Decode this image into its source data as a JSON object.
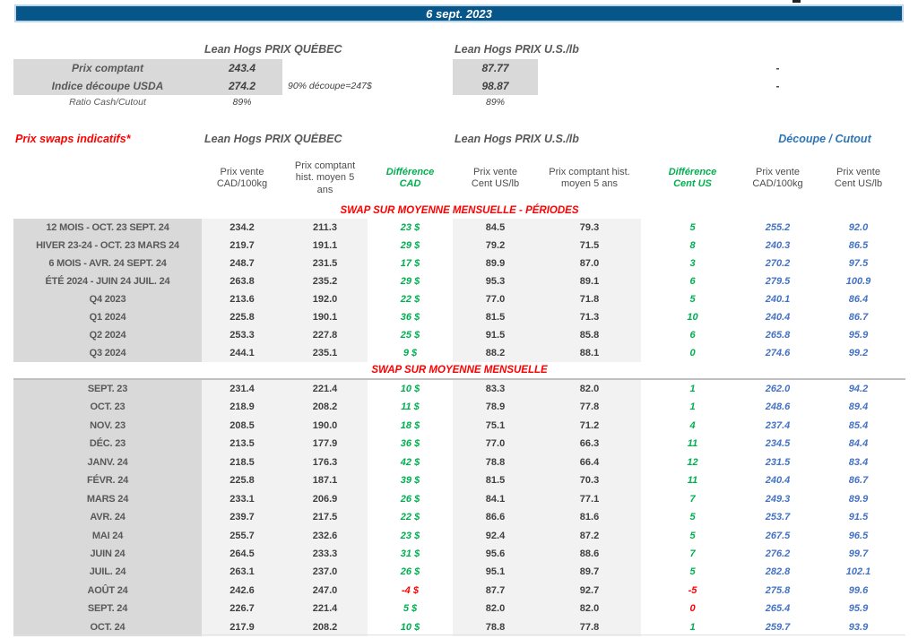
{
  "date_bar": {
    "text": "6 sept. 2023"
  },
  "colors": {
    "bar_blue": "#07568a",
    "positive_green": "#00b050",
    "negative_red": "#ff0000",
    "cutout_value_blue": "#4472c4",
    "cutout_header_blue": "#2e75b6",
    "section_title_red": "#ff0000",
    "label_bg_gray": "#d9d9d9",
    "value_bg_gray": "#f2f2f2"
  },
  "spot": {
    "quebec_header": "Lean Hogs PRIX QUÉBEC",
    "us_header": "Lean Hogs PRIX U.S./lb",
    "rows": [
      {
        "label": "Prix comptant",
        "quebec": "243.4",
        "note": "",
        "us": "87.77",
        "dash": "-"
      },
      {
        "label": "Indice découpe USDA",
        "quebec": "274.2",
        "note": "90% découpe=247$",
        "us": "98.87",
        "dash": "-"
      },
      {
        "label": "Ratio Cash/Cutout",
        "quebec": "89%",
        "note": "",
        "us": "89%",
        "dash": ""
      }
    ]
  },
  "swaps": {
    "title": "Prix swaps indicatifs*",
    "quebec_header": "Lean Hogs PRIX QUÉBEC",
    "us_header": "Lean Hogs PRIX U.S./lb",
    "cutout_header": "Découpe / Cutout",
    "column_headers": [
      "Prix vente\nCAD/100kg",
      "Prix comptant\nhist. moyen 5\nans",
      "Différence\nCAD",
      "Prix vente\nCent US/lb",
      "Prix comptant hist.\nmoyen 5 ans",
      "Différence\nCent US",
      "Prix vente\nCAD/100kg",
      "Prix vente\nCent US/lb"
    ],
    "sections": [
      {
        "title": "SWAP SUR MOYENNE MENSUELLE - PÉRIODES",
        "rows": [
          {
            "label": "12 MOIS - OCT. 23 SEPT. 24",
            "cad": "234.2",
            "cad_hist": "211.3",
            "diff_cad": "23 $",
            "diff_cad_color": "green",
            "us": "84.5",
            "us_hist": "79.3",
            "diff_us": "5",
            "diff_us_color": "green",
            "cutout_cad": "255.2",
            "cutout_us": "92.0"
          },
          {
            "label": "HIVER 23-24 -  OCT. 23 MARS 24",
            "cad": "219.7",
            "cad_hist": "191.1",
            "diff_cad": "29 $",
            "diff_cad_color": "green",
            "us": "79.2",
            "us_hist": "71.5",
            "diff_us": "8",
            "diff_us_color": "green",
            "cutout_cad": "240.3",
            "cutout_us": "86.5"
          },
          {
            "label": "6 MOIS -  AVR. 24 SEPT. 24",
            "cad": "248.7",
            "cad_hist": "231.5",
            "diff_cad": "17 $",
            "diff_cad_color": "green",
            "us": "89.9",
            "us_hist": "87.0",
            "diff_us": "3",
            "diff_us_color": "green",
            "cutout_cad": "270.2",
            "cutout_us": "97.5"
          },
          {
            "label": "ÉTÉ 2024 - JUIN 24 JUIL. 24",
            "cad": "263.8",
            "cad_hist": "235.2",
            "diff_cad": "29 $",
            "diff_cad_color": "green",
            "us": "95.3",
            "us_hist": "89.1",
            "diff_us": "6",
            "diff_us_color": "green",
            "cutout_cad": "279.5",
            "cutout_us": "100.9"
          },
          {
            "label": "Q4 2023",
            "cad": "213.6",
            "cad_hist": "192.0",
            "diff_cad": "22 $",
            "diff_cad_color": "green",
            "us": "77.0",
            "us_hist": "71.8",
            "diff_us": "5",
            "diff_us_color": "green",
            "cutout_cad": "240.1",
            "cutout_us": "86.4"
          },
          {
            "label": "Q1 2024",
            "cad": "225.8",
            "cad_hist": "190.1",
            "diff_cad": "36 $",
            "diff_cad_color": "green",
            "us": "81.5",
            "us_hist": "71.3",
            "diff_us": "10",
            "diff_us_color": "green",
            "cutout_cad": "240.4",
            "cutout_us": "86.7"
          },
          {
            "label": "Q2 2024",
            "cad": "253.3",
            "cad_hist": "227.8",
            "diff_cad": "25 $",
            "diff_cad_color": "green",
            "us": "91.5",
            "us_hist": "85.8",
            "diff_us": "6",
            "diff_us_color": "green",
            "cutout_cad": "265.8",
            "cutout_us": "95.9"
          },
          {
            "label": "Q3 2024",
            "cad": "244.1",
            "cad_hist": "235.1",
            "diff_cad": "9 $",
            "diff_cad_color": "green",
            "us": "88.2",
            "us_hist": "88.1",
            "diff_us": "0",
            "diff_us_color": "green",
            "cutout_cad": "274.6",
            "cutout_us": "99.2"
          }
        ]
      },
      {
        "title": "SWAP SUR MOYENNE MENSUELLE",
        "rows": [
          {
            "label": "SEPT. 23",
            "cad": "231.4",
            "cad_hist": "221.4",
            "diff_cad": "10 $",
            "diff_cad_color": "green",
            "us": "83.3",
            "us_hist": "82.0",
            "diff_us": "1",
            "diff_us_color": "green",
            "cutout_cad": "262.0",
            "cutout_us": "94.2"
          },
          {
            "label": "OCT. 23",
            "cad": "218.9",
            "cad_hist": "208.2",
            "diff_cad": "11 $",
            "diff_cad_color": "green",
            "us": "78.9",
            "us_hist": "77.8",
            "diff_us": "1",
            "diff_us_color": "green",
            "cutout_cad": "248.6",
            "cutout_us": "89.4"
          },
          {
            "label": "NOV. 23",
            "cad": "208.5",
            "cad_hist": "190.0",
            "diff_cad": "18 $",
            "diff_cad_color": "green",
            "us": "75.1",
            "us_hist": "71.2",
            "diff_us": "4",
            "diff_us_color": "green",
            "cutout_cad": "237.4",
            "cutout_us": "85.4"
          },
          {
            "label": "DÉC. 23",
            "cad": "213.5",
            "cad_hist": "177.9",
            "diff_cad": "36 $",
            "diff_cad_color": "green",
            "us": "77.0",
            "us_hist": "66.3",
            "diff_us": "11",
            "diff_us_color": "green",
            "cutout_cad": "234.5",
            "cutout_us": "84.4"
          },
          {
            "label": "JANV. 24",
            "cad": "218.5",
            "cad_hist": "176.3",
            "diff_cad": "42 $",
            "diff_cad_color": "green",
            "us": "78.8",
            "us_hist": "66.4",
            "diff_us": "12",
            "diff_us_color": "green",
            "cutout_cad": "231.5",
            "cutout_us": "83.4"
          },
          {
            "label": "FÉVR. 24",
            "cad": "225.8",
            "cad_hist": "187.1",
            "diff_cad": "39 $",
            "diff_cad_color": "green",
            "us": "81.5",
            "us_hist": "70.3",
            "diff_us": "11",
            "diff_us_color": "green",
            "cutout_cad": "240.4",
            "cutout_us": "86.7"
          },
          {
            "label": "MARS 24",
            "cad": "233.1",
            "cad_hist": "206.9",
            "diff_cad": "26 $",
            "diff_cad_color": "green",
            "us": "84.1",
            "us_hist": "77.1",
            "diff_us": "7",
            "diff_us_color": "green",
            "cutout_cad": "249.3",
            "cutout_us": "89.9"
          },
          {
            "label": "AVR. 24",
            "cad": "239.7",
            "cad_hist": "217.5",
            "diff_cad": "22 $",
            "diff_cad_color": "green",
            "us": "86.6",
            "us_hist": "81.6",
            "diff_us": "5",
            "diff_us_color": "green",
            "cutout_cad": "253.7",
            "cutout_us": "91.5"
          },
          {
            "label": "MAI 24",
            "cad": "255.7",
            "cad_hist": "232.6",
            "diff_cad": "23 $",
            "diff_cad_color": "green",
            "us": "92.4",
            "us_hist": "87.2",
            "diff_us": "5",
            "diff_us_color": "green",
            "cutout_cad": "267.5",
            "cutout_us": "96.5"
          },
          {
            "label": "JUIN 24",
            "cad": "264.5",
            "cad_hist": "233.3",
            "diff_cad": "31 $",
            "diff_cad_color": "green",
            "us": "95.6",
            "us_hist": "88.6",
            "diff_us": "7",
            "diff_us_color": "green",
            "cutout_cad": "276.2",
            "cutout_us": "99.7"
          },
          {
            "label": "JUIL. 24",
            "cad": "263.1",
            "cad_hist": "237.0",
            "diff_cad": "26 $",
            "diff_cad_color": "green",
            "us": "95.1",
            "us_hist": "89.7",
            "diff_us": "5",
            "diff_us_color": "green",
            "cutout_cad": "282.8",
            "cutout_us": "102.1"
          },
          {
            "label": "AOÛT 24",
            "cad": "242.6",
            "cad_hist": "247.0",
            "diff_cad": "-4 $",
            "diff_cad_color": "red",
            "us": "87.7",
            "us_hist": "92.7",
            "diff_us": "-5",
            "diff_us_color": "red",
            "cutout_cad": "275.8",
            "cutout_us": "99.6"
          },
          {
            "label": "SEPT. 24",
            "cad": "226.7",
            "cad_hist": "221.4",
            "diff_cad": "5 $",
            "diff_cad_color": "green",
            "us": "82.0",
            "us_hist": "82.0",
            "diff_us": "0",
            "diff_us_color": "red",
            "cutout_cad": "265.4",
            "cutout_us": "95.9"
          },
          {
            "label": "OCT. 24",
            "cad": "217.9",
            "cad_hist": "208.2",
            "diff_cad": "10 $",
            "diff_cad_color": "green",
            "us": "78.8",
            "us_hist": "77.8",
            "diff_us": "1",
            "diff_us_color": "green",
            "cutout_cad": "259.7",
            "cutout_us": "93.9"
          }
        ]
      }
    ]
  }
}
